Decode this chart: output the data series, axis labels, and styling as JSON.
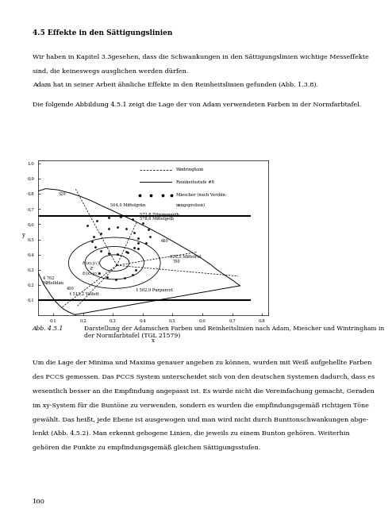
{
  "title": "4.5 Effekte in den Sättigungslinien",
  "line1": "Wir haben in Kapitel 3.3gesehen, dass die Schwankungen in den Sättigungslinien wichtige Messeffekte",
  "line2": "sind, die keineswegs ausglichen werden dürfen.",
  "line3": "Adam hat in seiner Arbeit ähnliche Effekte in den Reinheitslinien gefunden (Abb. 1.3.8).",
  "line4": "Die folgende Abbildung 4.5.1 zeigt die Lage der von Adam verwendeten Farben in der Normfarbtafel.",
  "fig_label": "Abb. 4.5.1",
  "fig_caption": "Darstellung der Adamschen Farben und Reinheitslinien nach Adam, Miescher und Wintringham in\nder Normfarbtafel (TGL 21579)",
  "para3_lines": [
    "Um die Lage der Minima und Maxima genauer angeben zu können, wurden mit Weiß aufgehellte Farben",
    "des PCCS gemessen. Das PCCS System unterscheidet sich von den deutschen Systemen dadurch, dass es",
    "wesentlich besser an die Empfindung angepasst ist. Es wurde nicht die Vereinfachung gemacht, Geraden",
    "im xy-System für die Buntöne zu verwenden, sondern es wurden die empfindungsgemäß richtigen Töne",
    "gewählt. Das heißt, jede Ebene ist ausgewogen und man wird nicht durch Bunttonschwankungen abge-",
    "lenkt (Abb. 4.5.2). Man erkennt gebogene Linien, die jeweils zu einem Bunton gehören. Weiterhin",
    "gehören die Punkte zu empfindungsgemäß gleichen Sättigungsstufen."
  ],
  "page_number": "100",
  "background_color": "#ffffff",
  "text_color": "#000000"
}
